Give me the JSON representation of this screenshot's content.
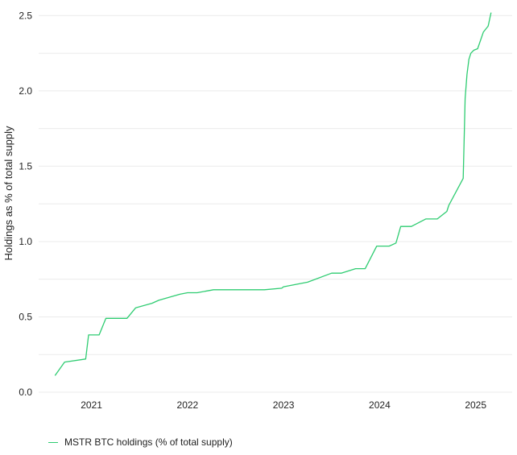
{
  "chart_data": {
    "type": "line",
    "title": "",
    "xlabel": "",
    "ylabel": "Holdings as % of total supply",
    "xlim": [
      2020.45,
      2025.38
    ],
    "ylim": [
      0,
      2.55
    ],
    "x_ticks": [
      2021,
      2022,
      2023,
      2024,
      2025
    ],
    "x_tick_labels": [
      "2021",
      "2022",
      "2023",
      "2024",
      "2025"
    ],
    "y_ticks": [
      0,
      0.5,
      1.0,
      1.5,
      2.0,
      2.5
    ],
    "y_tick_labels": [
      "0.0",
      "0.5",
      "1.0",
      "1.5",
      "2.0",
      "2.5"
    ],
    "minor_grid_y": [
      0.25,
      0.75,
      1.25,
      1.75,
      2.25
    ],
    "grid": true,
    "legend_position": "bottom-left",
    "colors": {
      "line": "#2ecc71",
      "grid": "#ebebeb",
      "text": "#222222"
    },
    "series": [
      {
        "name": "MSTR BTC holdings (% of total supply)",
        "x": [
          2020.62,
          2020.72,
          2020.94,
          2020.97,
          2021.08,
          2021.15,
          2021.27,
          2021.37,
          2021.46,
          2021.63,
          2021.7,
          2021.92,
          2022.0,
          2022.1,
          2022.27,
          2022.5,
          2022.8,
          2022.98,
          2023.0,
          2023.25,
          2023.5,
          2023.6,
          2023.75,
          2023.85,
          2023.97,
          2024.1,
          2024.17,
          2024.22,
          2024.33,
          2024.48,
          2024.6,
          2024.7,
          2024.72,
          2024.87,
          2024.89,
          2024.91,
          2024.93,
          2024.95,
          2024.98,
          2025.02,
          2025.08,
          2025.13,
          2025.16
        ],
        "values": [
          0.11,
          0.2,
          0.22,
          0.38,
          0.38,
          0.49,
          0.49,
          0.49,
          0.56,
          0.59,
          0.61,
          0.65,
          0.66,
          0.66,
          0.68,
          0.68,
          0.68,
          0.69,
          0.7,
          0.73,
          0.79,
          0.79,
          0.82,
          0.82,
          0.97,
          0.97,
          0.99,
          1.1,
          1.1,
          1.15,
          1.15,
          1.2,
          1.24,
          1.42,
          1.95,
          2.11,
          2.21,
          2.25,
          2.27,
          2.28,
          2.39,
          2.43,
          2.52
        ]
      }
    ]
  }
}
